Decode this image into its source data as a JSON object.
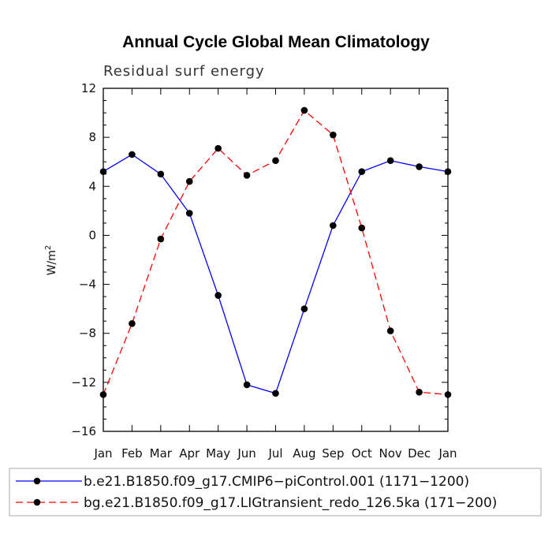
{
  "chart_data": {
    "type": "line",
    "title": "Annual Cycle Global Mean Climatology",
    "subtitle": "Residual surf energy",
    "ylabel": "W/m",
    "ylabel_superscript": "2",
    "xlabel": "",
    "categories": [
      "Jan",
      "Feb",
      "Mar",
      "Apr",
      "May",
      "Jun",
      "Jul",
      "Aug",
      "Sep",
      "Oct",
      "Nov",
      "Dec",
      "Jan"
    ],
    "yticks": [
      "12",
      "8",
      "4",
      "0",
      "−4",
      "−8",
      "−12",
      "−16"
    ],
    "ytick_values": [
      12,
      8,
      4,
      0,
      -4,
      -8,
      -12,
      -16
    ],
    "ylim": [
      -16,
      12
    ],
    "grid": false,
    "legend_position": "bottom",
    "series": [
      {
        "name": "b.e21.B1850.f09_g17.CMIP6−piControl.001 (1171−1200)",
        "color": "#0000ff",
        "dash": "solid",
        "marker": "filled-circle",
        "values": [
          5.2,
          6.6,
          5.0,
          1.8,
          -4.9,
          -12.2,
          -12.9,
          -6.0,
          0.8,
          5.2,
          6.1,
          5.6,
          5.2
        ]
      },
      {
        "name": "bg.e21.B1850.f09_g17.LIGtransient_redo_126.5ka (171−200)",
        "color": "#ff0000",
        "dash": "dashed",
        "marker": "filled-circle",
        "values": [
          -13.0,
          -7.2,
          -0.3,
          4.4,
          7.1,
          4.9,
          6.1,
          10.2,
          8.2,
          0.6,
          -7.8,
          -12.8,
          -13.0
        ]
      }
    ]
  }
}
